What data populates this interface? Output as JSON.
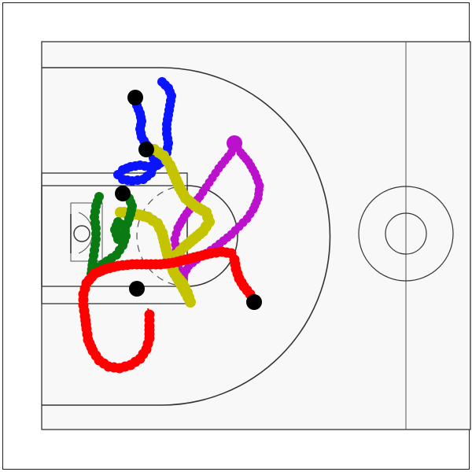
{
  "colors": {
    "court_line": "#333333",
    "court_fill": "#f8f8f8",
    "marker": "#000000"
  },
  "players": [
    {
      "name": "blue",
      "color": "#0a14ff"
    },
    {
      "name": "magenta",
      "color": "#bb11cc"
    },
    {
      "name": "yellow",
      "color": "#c4c400"
    },
    {
      "name": "green",
      "color": "#0a7a12"
    },
    {
      "name": "red",
      "color": "#ff0000"
    }
  ]
}
